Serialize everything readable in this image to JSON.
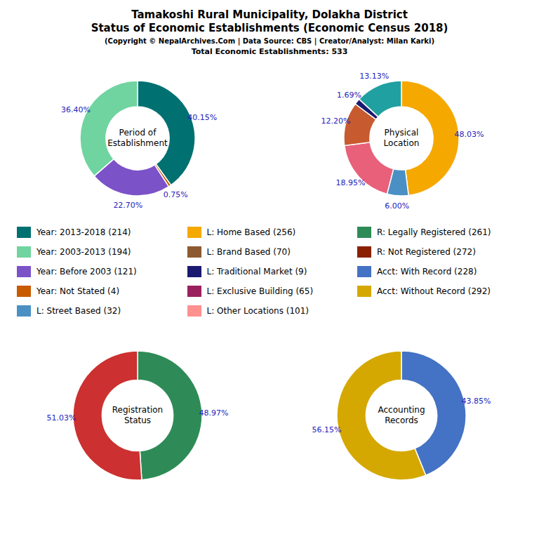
{
  "title": "Tamakoshi Rural Municipality, Dolakha District\nStatus of Economic Establishments (Economic Census 2018)",
  "subtitle": "(Copyright © NepalArchives.Com | Data Source: CBS | Creator/Analyst: Milan Karki)",
  "annotations": [
    "Total Economic Establishments: 533"
  ],
  "legend_items": [
    {
      "label": "Year: 2013-2018 (214)",
      "color": "#007070"
    },
    {
      "label": "Year: 2003-2013 (194)",
      "color": "#70D4A0"
    },
    {
      "label": "Year: Before 2003 (121)",
      "color": "#7B52C8"
    },
    {
      "label": "Year: Not Stated (4)",
      "color": "#C85A00"
    },
    {
      "label": "L: Street Based (32)",
      "color": "#4A90C4"
    },
    {
      "label": "L: Home Based (256)",
      "color": "#F5A800"
    },
    {
      "label": "L: Brand Based (70)",
      "color": "#8B5A30"
    },
    {
      "label": "L: Traditional Market (9)",
      "color": "#1A1A70"
    },
    {
      "label": "L: Exclusive Building (65)",
      "color": "#9B2060"
    },
    {
      "label": "L: Other Locations (101)",
      "color": "#FF9090"
    },
    {
      "label": "R: Legally Registered (261)",
      "color": "#2E8B57"
    },
    {
      "label": "R: Not Registered (272)",
      "color": "#8B2000"
    },
    {
      "label": "Acct: With Record (228)",
      "color": "#4472C4"
    },
    {
      "label": "Acct: Without Record (292)",
      "color": "#D4A800"
    }
  ],
  "chart_data": [
    {
      "type": "pie",
      "title": "Period of\nEstablishment",
      "values": [
        40.15,
        0.75,
        22.7,
        36.4
      ],
      "value_labels": [
        "40.15%",
        "0.75%",
        "22.70%",
        "36.40%"
      ],
      "colors": [
        "#007070",
        "#C85A00",
        "#7B52C8",
        "#70D4A0"
      ],
      "data_labels": true
    },
    {
      "type": "pie",
      "title": "Physical\nLocation",
      "values": [
        48.03,
        6.0,
        18.95,
        12.2,
        1.69,
        13.13
      ],
      "value_labels": [
        "48.03%",
        "6.00%",
        "18.95%",
        "12.20%",
        "1.69%",
        "13.13%"
      ],
      "colors": [
        "#F5A800",
        "#4A90C4",
        "#E8607A",
        "#C85A30",
        "#1A1A70",
        "#20A0A0"
      ],
      "data_labels": true
    },
    {
      "type": "pie",
      "title": "Registration\nStatus",
      "values": [
        48.97,
        51.03
      ],
      "value_labels": [
        "48.97%",
        "51.03%"
      ],
      "colors": [
        "#2E8B57",
        "#CC3030"
      ],
      "data_labels": true
    },
    {
      "type": "pie",
      "title": "Accounting\nRecords",
      "values": [
        43.85,
        56.15
      ],
      "value_labels": [
        "43.85%",
        "56.15%"
      ],
      "colors": [
        "#4472C4",
        "#D4A800"
      ],
      "data_labels": true
    }
  ]
}
